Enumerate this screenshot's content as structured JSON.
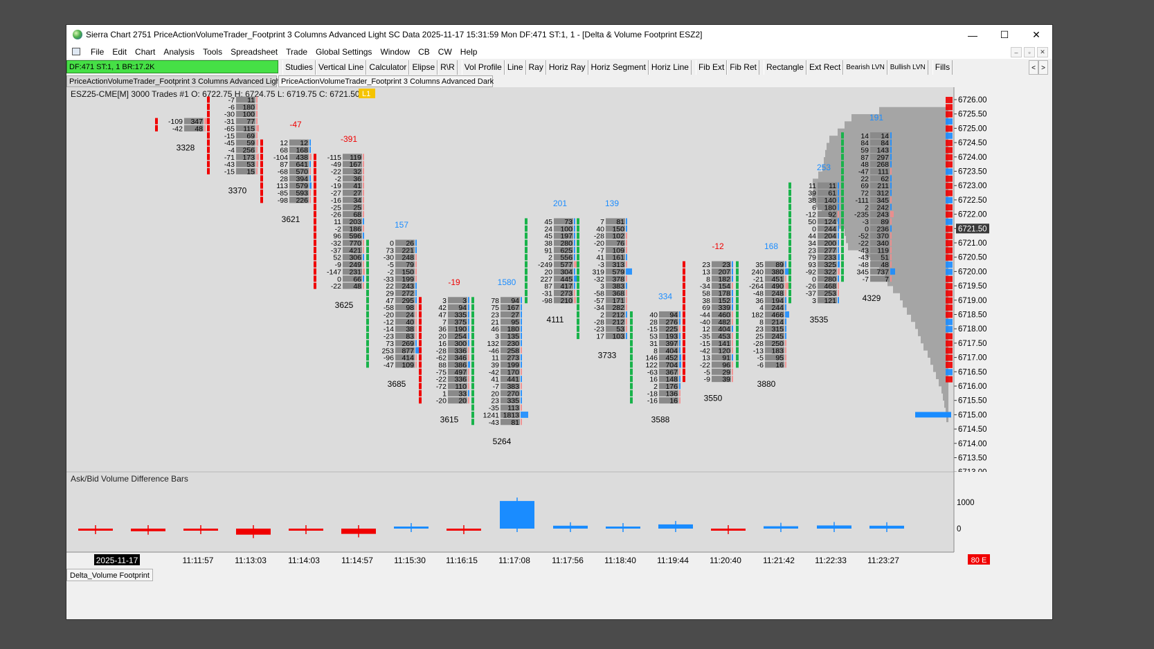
{
  "window": {
    "title": "Sierra Chart 2751 PriceActionVolumeTrader_Footprint 3 Columns Advanced Light SC Data 2025-11-17  15:31:59 Mon DF:471  ST:1, 1 - [Delta & Volume Footprint ESZ2]",
    "minimize": "—",
    "maximize": "☐",
    "close": "✕"
  },
  "menu": [
    "File",
    "Edit",
    "Chart",
    "Analysis",
    "Tools",
    "Spreadsheet",
    "Trade",
    "Global Settings",
    "Window",
    "CB",
    "CW",
    "Help"
  ],
  "mdi_controls": [
    "–",
    "▫",
    "✕"
  ],
  "status_box": "DF:471  ST:1, 1  BR:17.2K",
  "toolbar": [
    "Studies",
    "Vertical Line",
    "Calculator",
    "Elipse",
    "R\\R",
    "Vol Profile",
    "Line",
    "Ray",
    "Horiz Ray",
    "Horiz Segment",
    "Horiz Line",
    "Fib Ext",
    "Fib Ret",
    "Rectangle",
    "Ext Rect",
    "Bearish LVN",
    "Bullish LVN",
    "Fills"
  ],
  "toolbar_arrows": [
    "<",
    ">"
  ],
  "chartbook_tabs": [
    "PriceActionVolumeTrader_Footprint 3 Columns Advanced Light",
    "PriceActionVolumeTrader_Footprint 3 Columns Advanced Dark"
  ],
  "chart_header": {
    "symbol_info": "ESZ25-CME[M]  3000 Trades #1 O: 6722.75  H: 6724.75  L: 6719.75  C: 6721.50",
    "badge": "L1"
  },
  "price_axis": {
    "labels": [
      "6726.00",
      "6725.50",
      "6725.00",
      "6724.50",
      "6724.00",
      "6723.50",
      "6723.00",
      "6722.50",
      "6722.00",
      "6721.50",
      "6721.00",
      "6720.50",
      "6720.00",
      "6719.50",
      "6719.00",
      "6718.50",
      "6718.00",
      "6717.50",
      "6717.00",
      "6716.50",
      "6716.00",
      "6715.50",
      "6715.00",
      "6714.50",
      "6714.00",
      "6713.50",
      "6713.00"
    ],
    "current": "6721.50"
  },
  "subgraph": {
    "title": "Ask/Bid Volume Difference Bars",
    "axis_labels": [
      "1000",
      "0"
    ]
  },
  "time_labels": [
    "2025-11-17",
    "11:11:57",
    "11:13:03",
    "11:14:03",
    "11:14:57",
    "11:15:30",
    "11:16:15",
    "11:17:08",
    "11:17:56",
    "11:18:40",
    "11:19:44",
    "11:20:40",
    "11:21:42",
    "11:22:33",
    "11:23:27"
  ],
  "corner_badge": "80 E",
  "bottom_tab": "Delta_Volume Footprint",
  "colors": {
    "bull": "#1a8cff",
    "bear": "#f00000",
    "up_marker": "#19b34b",
    "chart_bg": "#dcdcdc",
    "profile": "#9b9b9b",
    "status_green": "#46e046"
  },
  "chart_data": {
    "type": "table",
    "bars": [
      {
        "time": "",
        "total": "3328",
        "delta": "",
        "delta_color": "",
        "rows": [
          [
            "-109",
            "347"
          ],
          [
            "-42",
            "48"
          ]
        ]
      },
      {
        "time": "11:11:57",
        "total": "3370",
        "delta": "",
        "delta_color": "",
        "rows": [
          [
            "-7",
            "11"
          ],
          [
            "-6",
            "180"
          ],
          [
            "-30",
            "100"
          ],
          [
            "-31",
            "77"
          ],
          [
            "-65",
            "115"
          ],
          [
            "-15",
            "69"
          ],
          [
            "-45",
            "59"
          ],
          [
            "-4",
            "256"
          ],
          [
            "-71",
            "173"
          ],
          [
            "-43",
            "53"
          ],
          [
            "-15",
            "15"
          ]
        ]
      },
      {
        "time": "11:13:03",
        "total": "3621",
        "delta": "-47",
        "delta_color": "bear",
        "rows": [
          [
            "12",
            "12"
          ],
          [
            "68",
            "168"
          ],
          [
            "-104",
            "438"
          ],
          [
            "87",
            "641"
          ],
          [
            "-68",
            "570"
          ],
          [
            "28",
            "394"
          ],
          [
            "113",
            "579"
          ],
          [
            "-85",
            "593"
          ],
          [
            "-98",
            "226"
          ]
        ]
      },
      {
        "time": "11:14:03",
        "total": "3625",
        "delta": "-391",
        "delta_color": "bear",
        "rows": [
          [
            "-115",
            "119"
          ],
          [
            "-49",
            "167"
          ],
          [
            "-22",
            "32"
          ],
          [
            "-2",
            "36"
          ],
          [
            "-19",
            "41"
          ],
          [
            "-27",
            "27"
          ],
          [
            "-16",
            "34"
          ],
          [
            "-25",
            "25"
          ],
          [
            "-26",
            "68"
          ],
          [
            "11",
            "203"
          ],
          [
            "-2",
            "186"
          ],
          [
            "96",
            "596"
          ],
          [
            "-32",
            "770"
          ],
          [
            "-37",
            "421"
          ],
          [
            "52",
            "306"
          ],
          [
            "-9",
            "249"
          ],
          [
            "-147",
            "231"
          ],
          [
            "0",
            "66"
          ],
          [
            "-22",
            "48"
          ]
        ]
      },
      {
        "time": "11:14:57",
        "total": "3685",
        "delta": "157",
        "delta_color": "bull",
        "rows": [
          [
            "0",
            "26"
          ],
          [
            "73",
            "221"
          ],
          [
            "-30",
            "248"
          ],
          [
            "-5",
            "79"
          ],
          [
            "-2",
            "150"
          ],
          [
            "-33",
            "199"
          ],
          [
            "22",
            "243"
          ],
          [
            "29",
            "272"
          ],
          [
            "47",
            "295"
          ],
          [
            "-58",
            "98"
          ],
          [
            "-20",
            "24"
          ],
          [
            "-12",
            "40"
          ],
          [
            "-14",
            "38"
          ],
          [
            "-23",
            "83"
          ],
          [
            "73",
            "269"
          ],
          [
            "253",
            "877"
          ],
          [
            "-96",
            "414"
          ],
          [
            "-47",
            "109"
          ]
        ]
      },
      {
        "time": "11:15:30",
        "total": "3615",
        "delta": "-19",
        "delta_color": "bear",
        "rows": [
          [
            "3",
            "3"
          ],
          [
            "42",
            "94"
          ],
          [
            "47",
            "335"
          ],
          [
            "7",
            "375"
          ],
          [
            "36",
            "190"
          ],
          [
            "20",
            "254"
          ],
          [
            "16",
            "300"
          ],
          [
            "-28",
            "336"
          ],
          [
            "-62",
            "346"
          ],
          [
            "88",
            "386"
          ],
          [
            "-75",
            "497"
          ],
          [
            "-22",
            "336"
          ],
          [
            "-72",
            "110"
          ],
          [
            "1",
            "33"
          ],
          [
            "-20",
            "20"
          ]
        ]
      },
      {
        "time": "11:16:15",
        "total": "5264",
        "delta": "1580",
        "delta_color": "bull",
        "rows": [
          [
            "78",
            "94"
          ],
          [
            "75",
            "167"
          ],
          [
            "23",
            "27"
          ],
          [
            "21",
            "95"
          ],
          [
            "46",
            "180"
          ],
          [
            "3",
            "135"
          ],
          [
            "132",
            "230"
          ],
          [
            "-46",
            "258"
          ],
          [
            "11",
            "273"
          ],
          [
            "39",
            "199"
          ],
          [
            "-42",
            "170"
          ],
          [
            "41",
            "441"
          ],
          [
            "-7",
            "383"
          ],
          [
            "20",
            "270"
          ],
          [
            "23",
            "335"
          ],
          [
            "-35",
            "113"
          ],
          [
            "1241",
            "1813"
          ],
          [
            "-43",
            "81"
          ]
        ]
      },
      {
        "time": "11:17:08",
        "total": "4111",
        "delta": "201",
        "delta_color": "bull",
        "rows": [
          [
            "45",
            "73"
          ],
          [
            "24",
            "100"
          ],
          [
            "45",
            "197"
          ],
          [
            "38",
            "280"
          ],
          [
            "91",
            "625"
          ],
          [
            "2",
            "556"
          ],
          [
            "-249",
            "577"
          ],
          [
            "20",
            "304"
          ],
          [
            "227",
            "445"
          ],
          [
            "87",
            "417"
          ],
          [
            "-31",
            "273"
          ],
          [
            "-98",
            "210"
          ]
        ]
      },
      {
        "time": "11:17:56",
        "total": "3733",
        "delta": "139",
        "delta_color": "bull",
        "rows": [
          [
            "7",
            "81"
          ],
          [
            "40",
            "150"
          ],
          [
            "-28",
            "102"
          ],
          [
            "-20",
            "76"
          ],
          [
            "-7",
            "109"
          ],
          [
            "41",
            "161"
          ],
          [
            "-3",
            "313"
          ],
          [
            "319",
            "579"
          ],
          [
            "-32",
            "378"
          ],
          [
            "3",
            "383"
          ],
          [
            "-58",
            "368"
          ],
          [
            "-57",
            "171"
          ],
          [
            "-34",
            "282"
          ],
          [
            "2",
            "212"
          ],
          [
            "-28",
            "212"
          ],
          [
            "-23",
            "53"
          ],
          [
            "17",
            "103"
          ]
        ]
      },
      {
        "time": "11:18:40",
        "total": "3588",
        "delta": "334",
        "delta_color": "bull",
        "rows": [
          [
            "40",
            "94"
          ],
          [
            "28",
            "276"
          ],
          [
            "-15",
            "225"
          ],
          [
            "53",
            "193"
          ],
          [
            "31",
            "397"
          ],
          [
            "8",
            "404"
          ],
          [
            "146",
            "452"
          ],
          [
            "122",
            "704"
          ],
          [
            "-63",
            "367"
          ],
          [
            "16",
            "148"
          ],
          [
            "2",
            "176"
          ],
          [
            "-18",
            "136"
          ],
          [
            "-16",
            "16"
          ]
        ]
      },
      {
        "time": "11:19:44",
        "total": "3550",
        "delta": "-12",
        "delta_color": "bear",
        "rows": [
          [
            "23",
            "23"
          ],
          [
            "13",
            "207"
          ],
          [
            "8",
            "182"
          ],
          [
            "-34",
            "154"
          ],
          [
            "58",
            "178"
          ],
          [
            "38",
            "152"
          ],
          [
            "69",
            "339"
          ],
          [
            "-44",
            "460"
          ],
          [
            "-40",
            "482"
          ],
          [
            "12",
            "404"
          ],
          [
            "-35",
            "453"
          ],
          [
            "-15",
            "141"
          ],
          [
            "-42",
            "120"
          ],
          [
            "13",
            "91"
          ],
          [
            "-22",
            "96"
          ],
          [
            "-5",
            "29"
          ],
          [
            "-9",
            "39"
          ]
        ]
      },
      {
        "time": "11:20:40",
        "total": "3880",
        "delta": "168",
        "delta_color": "bull",
        "rows": [
          [
            "35",
            "89"
          ],
          [
            "240",
            "380"
          ],
          [
            "-21",
            "451"
          ],
          [
            "-264",
            "490"
          ],
          [
            "-48",
            "248"
          ],
          [
            "36",
            "194"
          ],
          [
            "4",
            "244"
          ],
          [
            "182",
            "466"
          ],
          [
            "8",
            "214"
          ],
          [
            "23",
            "315"
          ],
          [
            "25",
            "245"
          ],
          [
            "-28",
            "250"
          ],
          [
            "-13",
            "183"
          ],
          [
            "-5",
            "95"
          ],
          [
            "-6",
            "16"
          ]
        ]
      },
      {
        "time": "11:21:42",
        "total": "3535",
        "delta": "253",
        "delta_color": "bull",
        "rows": [
          [
            "11",
            "11"
          ],
          [
            "39",
            "61"
          ],
          [
            "38",
            "140"
          ],
          [
            "6",
            "180"
          ],
          [
            "-12",
            "92"
          ],
          [
            "50",
            "124"
          ],
          [
            "0",
            "244"
          ],
          [
            "44",
            "204"
          ],
          [
            "34",
            "200"
          ],
          [
            "23",
            "277"
          ],
          [
            "79",
            "233"
          ],
          [
            "93",
            "325"
          ],
          [
            "-92",
            "322"
          ],
          [
            "0",
            "280"
          ],
          [
            "-26",
            "468"
          ],
          [
            "-37",
            "253"
          ],
          [
            "3",
            "121"
          ]
        ]
      },
      {
        "time": "11:22:33",
        "total": "4329",
        "delta": "191",
        "delta_color": "bull",
        "rows": [
          [
            "14",
            "14"
          ],
          [
            "84",
            "84"
          ],
          [
            "59",
            "143"
          ],
          [
            "87",
            "297"
          ],
          [
            "48",
            "268"
          ],
          [
            "-47",
            "111"
          ],
          [
            "22",
            "62"
          ],
          [
            "69",
            "211"
          ],
          [
            "72",
            "312"
          ],
          [
            "-111",
            "345"
          ],
          [
            "2",
            "242"
          ],
          [
            "-235",
            "243"
          ],
          [
            "-3",
            "89"
          ],
          [
            "0",
            "236"
          ],
          [
            "-52",
            "370"
          ],
          [
            "-22",
            "340"
          ],
          [
            "-43",
            "119"
          ],
          [
            "-43",
            "51"
          ],
          [
            "-48",
            "48"
          ],
          [
            "345",
            "737"
          ],
          [
            "-7",
            "7"
          ]
        ]
      }
    ],
    "delta_bars": {
      "series": [
        {
          "name": "Ask/Bid Volume Difference Bars",
          "values": [
            -50,
            -100,
            -10,
            -230,
            -60,
            -200,
            60,
            -20,
            1050,
            110,
            60,
            160,
            -10,
            90,
            120,
            110
          ]
        }
      ],
      "ylim": [
        -300,
        1200
      ]
    }
  }
}
